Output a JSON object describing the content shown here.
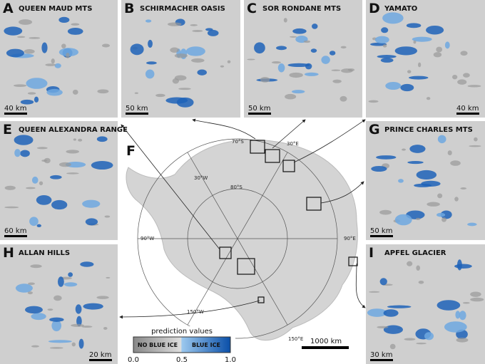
{
  "panels": [
    {
      "letter": "A",
      "title": "QUEEN MAUD MTS",
      "scale": "40 km"
    },
    {
      "letter": "B",
      "title": "SCHIRMACHER OASIS",
      "scale": "50 km"
    },
    {
      "letter": "C",
      "title": "SOR RONDANE MTS",
      "scale": "50 km"
    },
    {
      "letter": "D",
      "title": "YAMATO",
      "scale": "40 km"
    },
    {
      "letter": "E",
      "title": "QUEEN ALEXANDRA RANGE",
      "scale": "60 km"
    },
    {
      "letter": "G",
      "title": "PRINCE CHARLES MTS",
      "scale": "50 km"
    },
    {
      "letter": "H",
      "title": "ALLAN HILLS",
      "scale": "20 km"
    },
    {
      "letter": "I",
      "title": "APFEL GLACIER",
      "scale": "30 km"
    }
  ],
  "map": {
    "letter": "F",
    "graticule": [
      "70°S",
      "30°E",
      "30°W",
      "80°S",
      "90°W",
      "90°E",
      "150°W",
      "150°E"
    ],
    "scale": "1000 km"
  },
  "legend": {
    "title": "prediction values",
    "low_label": "NO BLUE ICE",
    "high_label": "BLUE ICE",
    "ticks": [
      "0.0",
      "0.5",
      "1.0"
    ]
  }
}
